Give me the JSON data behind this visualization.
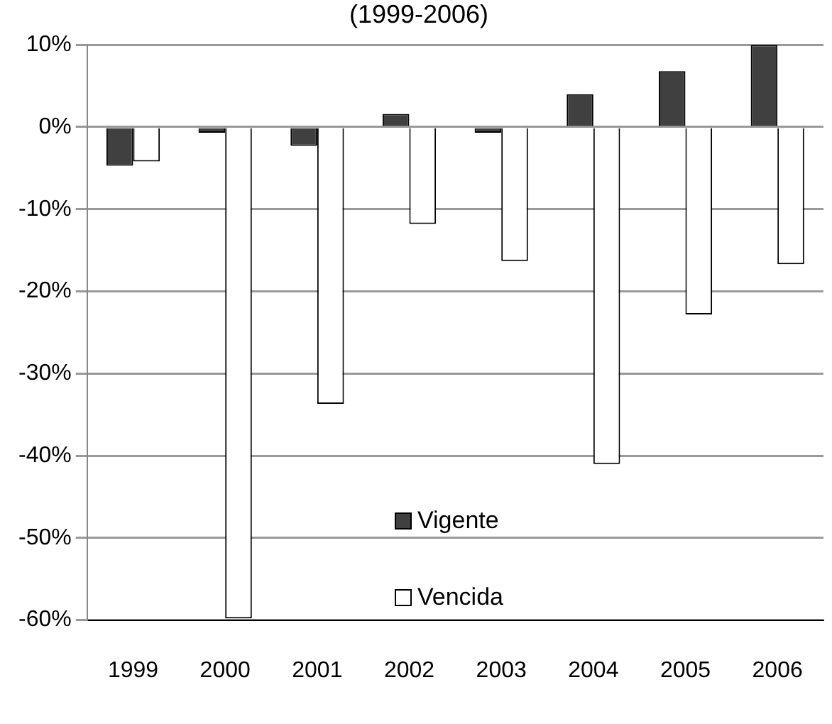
{
  "chart_data": {
    "type": "bar",
    "title": "(1999-2006)",
    "categories": [
      "1999",
      "2000",
      "2001",
      "2002",
      "2003",
      "2004",
      "2005",
      "2006"
    ],
    "series": [
      {
        "name": "Vigente",
        "color": "#404040",
        "values": [
          -4.7,
          -0.7,
          -2.3,
          1.6,
          -0.7,
          4.0,
          6.8,
          10.0
        ]
      },
      {
        "name": "Vencida",
        "color": "#ffffff",
        "values": [
          -4.2,
          -59.8,
          -33.7,
          -11.8,
          -16.3,
          -41.0,
          -22.8,
          -16.7
        ]
      }
    ],
    "ylim": [
      -60,
      10
    ],
    "yticks": [
      {
        "value": -60,
        "label": "-60%"
      },
      {
        "value": -50,
        "label": "-50%"
      },
      {
        "value": -40,
        "label": "-40%"
      },
      {
        "value": -30,
        "label": "-30%"
      },
      {
        "value": -20,
        "label": "-20%"
      },
      {
        "value": -10,
        "label": "-10%"
      },
      {
        "value": 0,
        "label": "0%"
      },
      {
        "value": 10,
        "label": "10%"
      }
    ],
    "grid": "y",
    "legend": "bottom"
  }
}
